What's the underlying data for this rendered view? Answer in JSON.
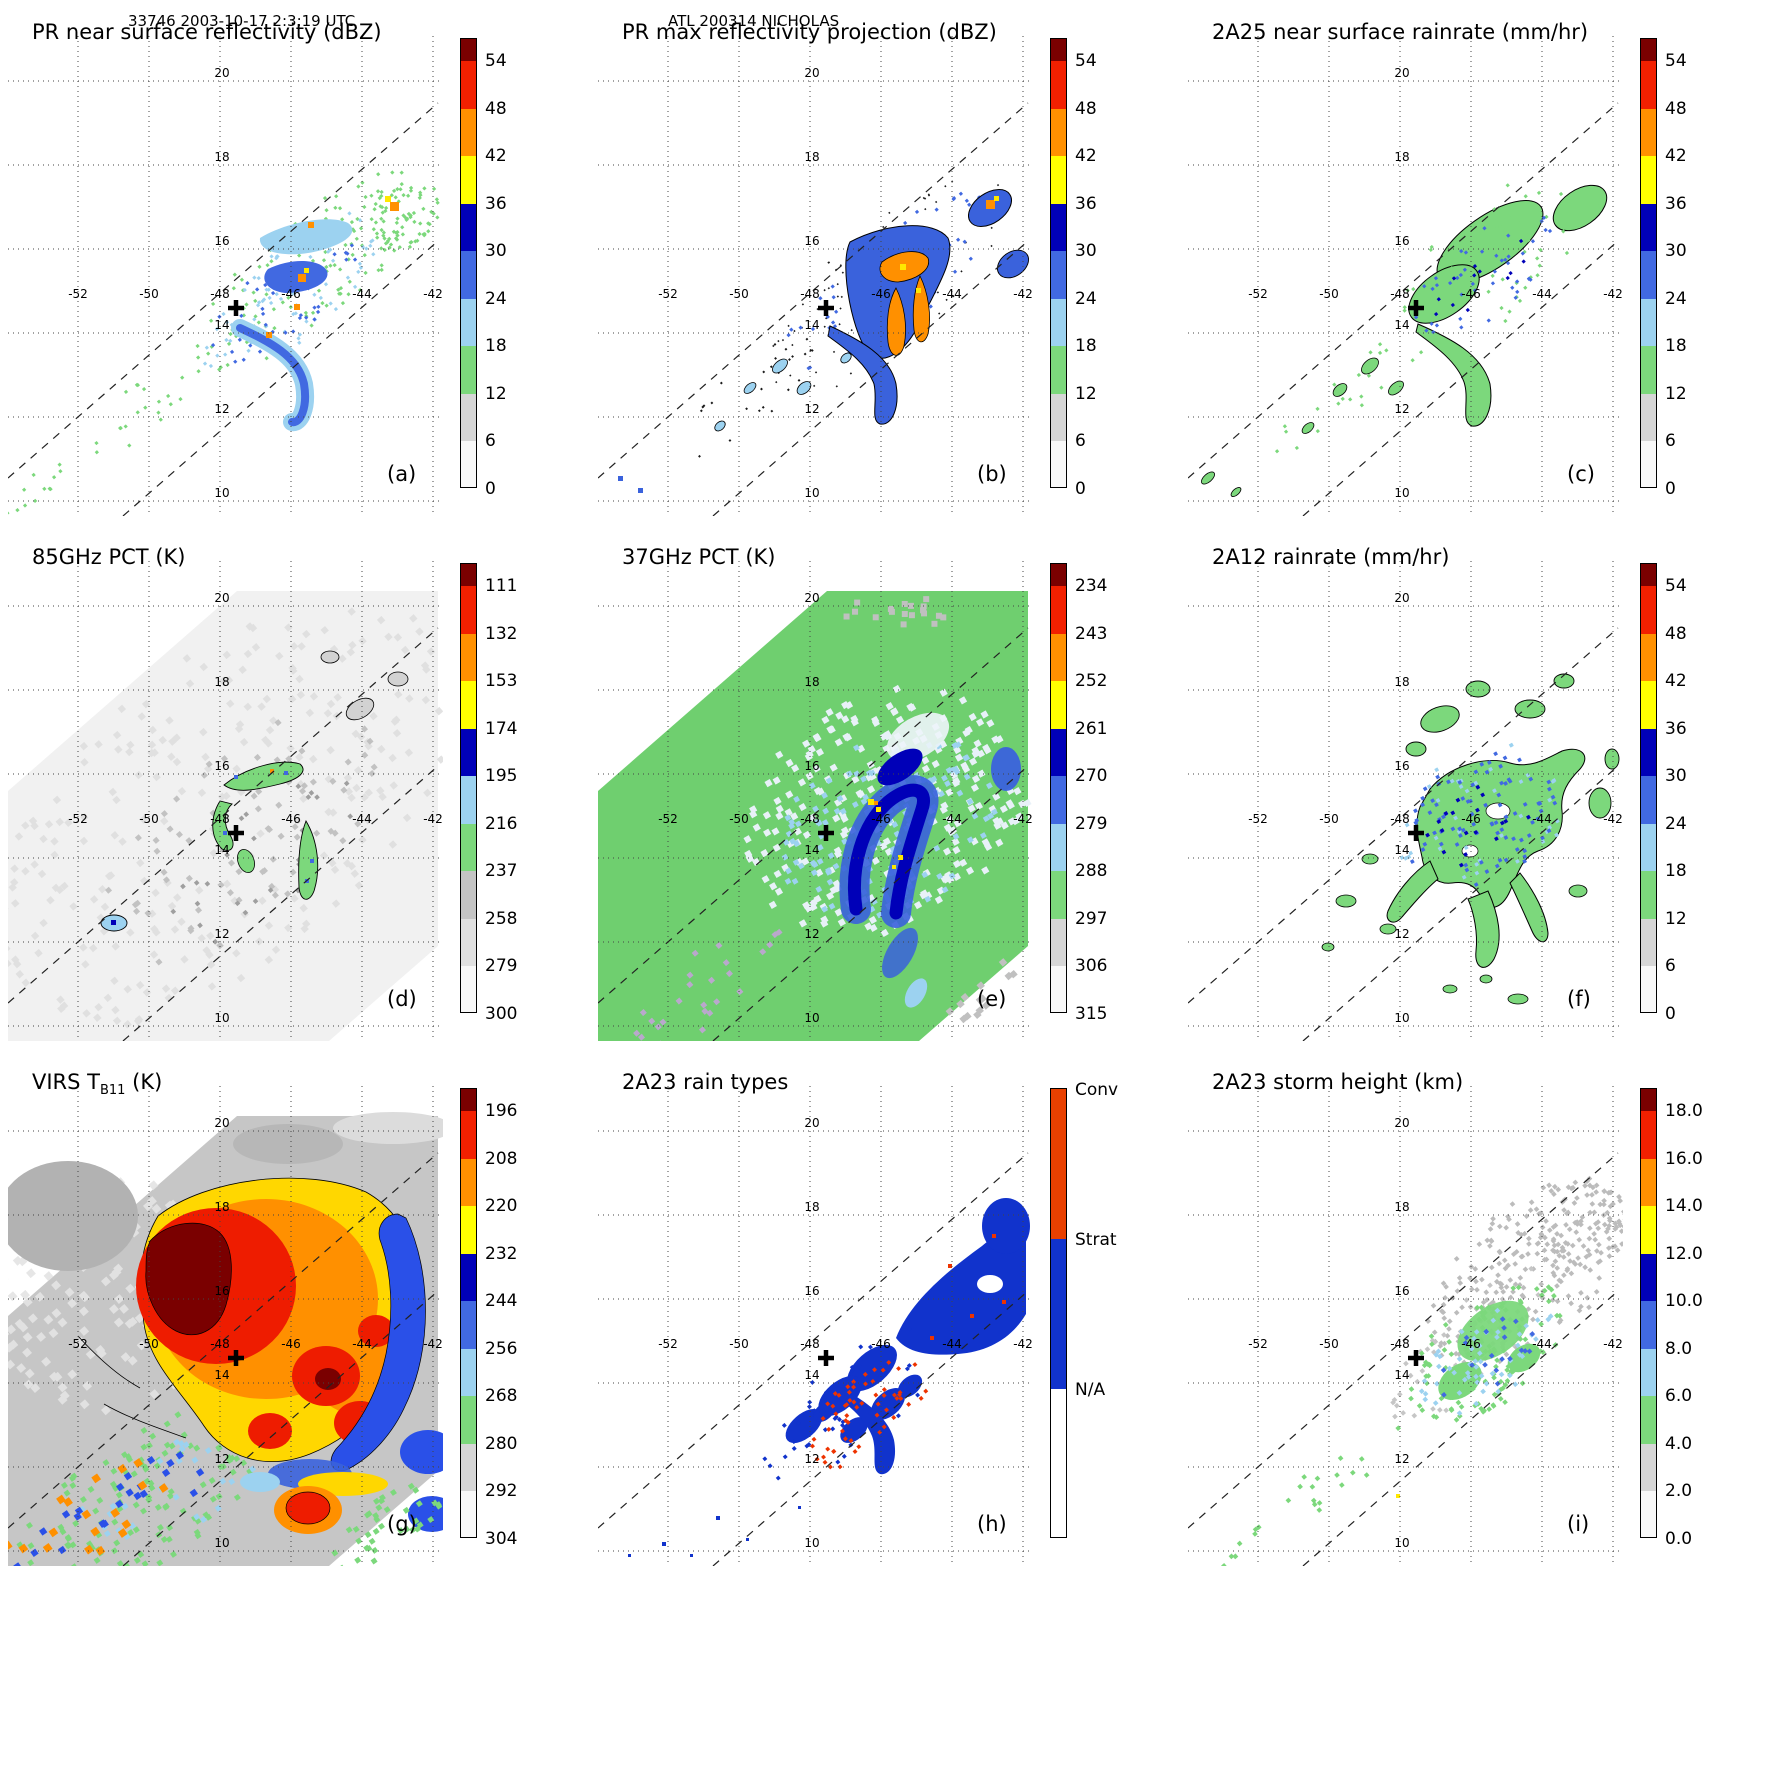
{
  "header": {
    "left": "33746 2003-10-17 2:3:19 UTC",
    "center": "ATL 200314 NICHOLAS"
  },
  "axes": {
    "lon_labels": [
      "-52",
      "-50",
      "-48",
      "-46",
      "-44",
      "-42"
    ],
    "lat_labels": [
      "20",
      "18",
      "16",
      "14",
      "12",
      "10"
    ]
  },
  "panels": [
    {
      "id": "a",
      "t1": "PR near surface reflectivity (dBZ)",
      "sub": "",
      "t2": "",
      "letter": "(a)",
      "colorbar": "scale54"
    },
    {
      "id": "b",
      "t1": "PR max reflectivity projection (dBZ)",
      "sub": "",
      "t2": "",
      "letter": "(b)",
      "colorbar": "scale54"
    },
    {
      "id": "c",
      "t1": "2A25 near surface rainrate (mm/hr)",
      "sub": "",
      "t2": "",
      "letter": "(c)",
      "colorbar": "scale54"
    },
    {
      "id": "d",
      "t1": "85GHz PCT (K)",
      "sub": "",
      "t2": "",
      "letter": "(d)",
      "colorbar": "pct85"
    },
    {
      "id": "e",
      "t1": "37GHz PCT (K)",
      "sub": "",
      "t2": "",
      "letter": "(e)",
      "colorbar": "pct37"
    },
    {
      "id": "f",
      "t1": "2A12 rainrate (mm/hr)",
      "sub": "",
      "t2": "",
      "letter": "(f)",
      "colorbar": "scale54"
    },
    {
      "id": "g",
      "t1": "VIRS T",
      "sub": "B11",
      "t2": " (K)",
      "letter": "(g)",
      "colorbar": "virs"
    },
    {
      "id": "h",
      "t1": "2A23 rain types",
      "sub": "",
      "t2": "",
      "letter": "(h)",
      "colorbar": "raintype"
    },
    {
      "id": "i",
      "t1": "2A23 storm height (km)",
      "sub": "",
      "t2": "",
      "letter": "(i)",
      "colorbar": "height"
    }
  ],
  "colorbars": {
    "scale54": {
      "type": "continuous",
      "ticks": [
        "0",
        "6",
        "12",
        "18",
        "24",
        "30",
        "36",
        "42",
        "48",
        "54"
      ],
      "segments": [
        "#f8f8f8",
        "#d6d6d6",
        "#7cd87c",
        "#9cd2f0",
        "#4169e1",
        "#0000b8",
        "#ffff00",
        "#ff9000",
        "#f22000"
      ],
      "cap": "#7a0000"
    },
    "pct85": {
      "type": "continuous",
      "ticks": [
        "300",
        "279",
        "258",
        "237",
        "216",
        "195",
        "174",
        "153",
        "132",
        "111"
      ],
      "segments": [
        "#f8f8f8",
        "#e0e0e0",
        "#c4c4c4",
        "#7cd87c",
        "#9cd2f0",
        "#0000b8",
        "#ffff00",
        "#ff9000",
        "#f22000"
      ],
      "cap": "#7a0000"
    },
    "pct37": {
      "type": "continuous",
      "ticks": [
        "315",
        "306",
        "297",
        "288",
        "279",
        "270",
        "261",
        "252",
        "243",
        "234"
      ],
      "segments": [
        "#f8f8f8",
        "#d6d6d6",
        "#7cd87c",
        "#9cd2f0",
        "#4169e1",
        "#0000b8",
        "#ffff00",
        "#ff9000",
        "#f22000"
      ],
      "cap": "#7a0000"
    },
    "virs": {
      "type": "continuous",
      "ticks": [
        "304",
        "292",
        "280",
        "268",
        "256",
        "244",
        "232",
        "220",
        "208",
        "196"
      ],
      "segments": [
        "#f8f8f8",
        "#d6d6d6",
        "#7cd87c",
        "#9cd2f0",
        "#4169e1",
        "#0000b8",
        "#ffff00",
        "#ff9000",
        "#f22000"
      ],
      "cap": "#7a0000"
    },
    "height": {
      "type": "continuous",
      "ticks": [
        "0.0",
        "2.0",
        "4.0",
        "6.0",
        "8.0",
        "10.0",
        "12.0",
        "14.0",
        "16.0",
        "18.0"
      ],
      "segments": [
        "#f8f8f8",
        "#d6d6d6",
        "#7cd87c",
        "#9cd2f0",
        "#4169e1",
        "#0000b8",
        "#ffff00",
        "#ff9000",
        "#f22000"
      ],
      "cap": "#7a0000"
    },
    "raintype": {
      "type": "discrete",
      "labels": [
        "Conv",
        "Strat",
        "N/A"
      ],
      "segments": [
        "#e84000",
        "#1133cc",
        "#ffffff"
      ]
    }
  },
  "geo": {
    "lon_gridlines": [
      -52,
      -50,
      -48,
      -46,
      -44,
      -42
    ],
    "lat_gridlines": [
      20,
      18,
      16,
      14,
      12,
      10
    ],
    "storm_center": {
      "lon": -47.6,
      "lat": 14.5
    },
    "swath_orientation": "SW to NE diagonal, edges marked by dashed lines"
  },
  "chart_data": [
    {
      "panel": "a",
      "title": "PR near surface reflectivity (dBZ)",
      "type": "heatmap",
      "units": "dBZ",
      "colorbar_ticks": [
        0,
        6,
        12,
        18,
        24,
        30,
        36,
        42,
        48,
        54
      ],
      "swath": "narrow",
      "features": "Curved rainbands of 18-35 dBZ near 47-44W 12-16N, isolated 36-48 dBZ convective cells, scattered light echoes along swath"
    },
    {
      "panel": "b",
      "title": "PR max reflectivity projection (dBZ)",
      "type": "heatmap",
      "units": "dBZ",
      "colorbar_ticks": [
        0,
        6,
        12,
        18,
        24,
        30,
        36,
        42,
        48,
        54
      ],
      "swath": "narrow",
      "features": "Same bands as (a) but stronger; widespread 30-45 dBZ cores outlined with black contours"
    },
    {
      "panel": "c",
      "title": "2A25 near surface rainrate (mm/hr)",
      "type": "heatmap",
      "units": "mm/hr",
      "colorbar_ticks": [
        0,
        6,
        12,
        18,
        24,
        30,
        36,
        42,
        48,
        54
      ],
      "swath": "narrow",
      "features": "Light rain (green) over band areas with embedded 6-30 mm/hr blue pixels, black contours around rain areas"
    },
    {
      "panel": "d",
      "title": "85GHz PCT (K)",
      "type": "heatmap",
      "units": "K",
      "colorbar_ticks": [
        300,
        279,
        258,
        237,
        216,
        195,
        174,
        153,
        132,
        111
      ],
      "swath": "wide",
      "features": "Mostly 258-300 K gray/white; arc-shaped 216-237 K (green) depressions near storm center with a few colder pixels"
    },
    {
      "panel": "e",
      "title": "37GHz PCT (K)",
      "type": "heatmap",
      "units": "K",
      "colorbar_ticks": [
        315,
        306,
        297,
        288,
        279,
        270,
        261,
        252,
        243,
        234
      ],
      "swath": "wide",
      "features": "Green background ~288-297 K; comma-shaped 261-279 K blue region around center, few 243-261 K pixels"
    },
    {
      "panel": "f",
      "title": "2A12 rainrate (mm/hr)",
      "type": "heatmap",
      "units": "mm/hr",
      "colorbar_ticks": [
        0,
        6,
        12,
        18,
        24,
        30,
        36,
        42,
        48,
        54
      ],
      "swath": "wide",
      "features": "Broad light-rain area (green) with embedded 6-24 mm/hr blue pixels centered on the storm, black contours"
    },
    {
      "panel": "g",
      "title": "VIRS TB11 (K)",
      "type": "heatmap",
      "units": "K",
      "colorbar_ticks": [
        304,
        292,
        280,
        268,
        256,
        244,
        232,
        220,
        208,
        196
      ],
      "swath": "wide",
      "features": "Large cold cloud shield: <208 K red/dark-red core west of center, 208-232 K orange/yellow canopy, 232-256 K blue fringe, warm gray clear air to NW"
    },
    {
      "panel": "h",
      "title": "2A23 rain types",
      "type": "categorical",
      "categories": [
        "Conv",
        "Strat",
        "N/A"
      ],
      "swath": "narrow",
      "features": "Mostly stratiform (blue) rain along the bands with scattered convective (red-orange) pixels in the inner band"
    },
    {
      "panel": "i",
      "title": "2A23 storm height (km)",
      "type": "heatmap",
      "units": "km",
      "colorbar_ticks": [
        0,
        2,
        4,
        6,
        8,
        10,
        12,
        14,
        16,
        18
      ],
      "swath": "narrow",
      "features": "Echo tops mostly 2-6 km (gray/green) with pockets of 8-12 km (blue) in the rainbands"
    }
  ]
}
